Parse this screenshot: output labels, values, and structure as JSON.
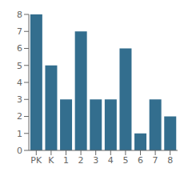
{
  "chart_data": {
    "type": "bar",
    "categories": [
      "PK",
      "K",
      "1",
      "2",
      "3",
      "4",
      "5",
      "6",
      "7",
      "8"
    ],
    "values": [
      8,
      5,
      3,
      7,
      3,
      3,
      6,
      1,
      3,
      2
    ],
    "color": "#336e8e",
    "ylim": [
      0,
      8
    ],
    "yticks": [
      0,
      1,
      2,
      3,
      4,
      5,
      6,
      7,
      8
    ],
    "grid": false
  }
}
